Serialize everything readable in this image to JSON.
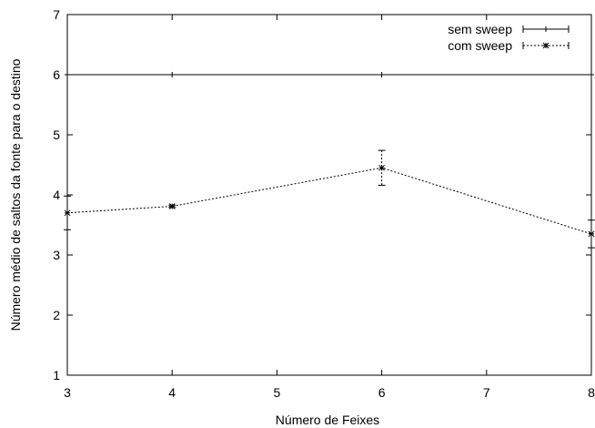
{
  "chart_data": {
    "type": "line",
    "title": "",
    "xlabel": "Número de Feixes",
    "ylabel": "Número médio de saltos da fonte para o destino",
    "xlim": [
      3,
      8
    ],
    "ylim": [
      1,
      7
    ],
    "xticks": [
      "3",
      "4",
      "5",
      "6",
      "7",
      "8"
    ],
    "yticks": [
      "1",
      "2",
      "3",
      "4",
      "5",
      "6",
      "7"
    ],
    "grid": false,
    "legend_position": "top-right",
    "series": [
      {
        "name": "sem sweep",
        "style": "solid",
        "marker": "+",
        "color": "#000000",
        "x": [
          3,
          4,
          6,
          8
        ],
        "y": [
          6,
          6,
          6,
          6
        ],
        "err": [
          0,
          0,
          0,
          0
        ]
      },
      {
        "name": "com sweep",
        "style": "dotted",
        "marker": "*",
        "color": "#000000",
        "x": [
          3,
          4,
          6,
          8
        ],
        "y": [
          3.7,
          3.81,
          4.45,
          3.35
        ],
        "err": [
          0.28,
          0.02,
          0.29,
          0.23
        ]
      }
    ]
  }
}
